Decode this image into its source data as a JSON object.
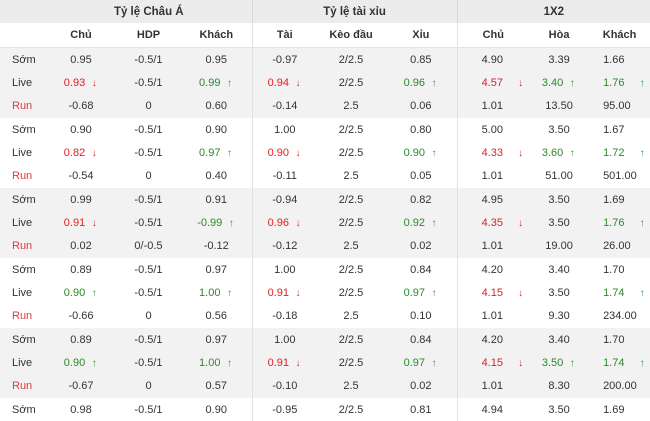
{
  "groups": [
    "Tỷ lệ Châu Á",
    "Tỷ lệ tài xỉu",
    "1X2"
  ],
  "columns": [
    "Chủ",
    "HDP",
    "Khách",
    "Tài",
    "Kèo đầu",
    "Xỉu",
    "Chủ",
    "Hòa",
    "Khách"
  ],
  "colors": {
    "down": "#e02020",
    "up": "#2aa02a",
    "run_label": "#e03a3a",
    "group_bg": "#f2f2f2"
  },
  "rows": [
    {
      "label": "Sớm",
      "type": "som",
      "vals": [
        "0.95",
        "-0.5/1",
        "0.95",
        "-0.97",
        "2/2.5",
        "0.85",
        "4.90",
        "3.39",
        "1.66"
      ],
      "dirs": [
        "",
        "",
        "",
        "",
        "",
        "",
        "",
        "",
        ""
      ]
    },
    {
      "label": "Live",
      "type": "live",
      "vals": [
        "0.93",
        "-0.5/1",
        "0.99",
        "0.94",
        "2/2.5",
        "0.96",
        "4.57",
        "3.40",
        "1.76"
      ],
      "dirs": [
        "down",
        "",
        "up",
        "down",
        "",
        "up",
        "down",
        "up",
        "up"
      ]
    },
    {
      "label": "Run",
      "type": "run",
      "vals": [
        "-0.68",
        "0",
        "0.60",
        "-0.14",
        "2.5",
        "0.06",
        "1.01",
        "13.50",
        "95.00"
      ],
      "dirs": [
        "",
        "",
        "",
        "",
        "",
        "",
        "",
        "",
        ""
      ]
    },
    {
      "label": "Sớm",
      "type": "som",
      "vals": [
        "0.90",
        "-0.5/1",
        "0.90",
        "1.00",
        "2/2.5",
        "0.80",
        "5.00",
        "3.50",
        "1.67"
      ],
      "dirs": [
        "",
        "",
        "",
        "",
        "",
        "",
        "",
        "",
        ""
      ]
    },
    {
      "label": "Live",
      "type": "live",
      "vals": [
        "0.82",
        "-0.5/1",
        "0.97",
        "0.90",
        "2/2.5",
        "0.90",
        "4.33",
        "3.60",
        "1.72"
      ],
      "dirs": [
        "down",
        "",
        "up",
        "down",
        "",
        "up",
        "down",
        "up",
        "up"
      ]
    },
    {
      "label": "Run",
      "type": "run",
      "vals": [
        "-0.54",
        "0",
        "0.40",
        "-0.11",
        "2.5",
        "0.05",
        "1.01",
        "51.00",
        "501.00"
      ],
      "dirs": [
        "",
        "",
        "",
        "",
        "",
        "",
        "",
        "",
        ""
      ]
    },
    {
      "label": "Sớm",
      "type": "som",
      "vals": [
        "0.99",
        "-0.5/1",
        "0.91",
        "-0.94",
        "2/2.5",
        "0.82",
        "4.95",
        "3.50",
        "1.69"
      ],
      "dirs": [
        "",
        "",
        "",
        "",
        "",
        "",
        "",
        "",
        ""
      ]
    },
    {
      "label": "Live",
      "type": "live",
      "vals": [
        "0.91",
        "-0.5/1",
        "-0.99",
        "0.96",
        "2/2.5",
        "0.92",
        "4.35",
        "3.50",
        "1.76"
      ],
      "dirs": [
        "down",
        "",
        "up",
        "down",
        "",
        "up",
        "down",
        "",
        "up"
      ]
    },
    {
      "label": "Run",
      "type": "run",
      "vals": [
        "0.02",
        "0/-0.5",
        "-0.12",
        "-0.12",
        "2.5",
        "0.02",
        "1.01",
        "19.00",
        "26.00"
      ],
      "dirs": [
        "",
        "",
        "",
        "",
        "",
        "",
        "",
        "",
        ""
      ]
    },
    {
      "label": "Sớm",
      "type": "som",
      "vals": [
        "0.89",
        "-0.5/1",
        "0.97",
        "1.00",
        "2/2.5",
        "0.84",
        "4.20",
        "3.40",
        "1.70"
      ],
      "dirs": [
        "",
        "",
        "",
        "",
        "",
        "",
        "",
        "",
        ""
      ]
    },
    {
      "label": "Live",
      "type": "live",
      "vals": [
        "0.90",
        "-0.5/1",
        "1.00",
        "0.91",
        "2/2.5",
        "0.97",
        "4.15",
        "3.50",
        "1.74"
      ],
      "dirs": [
        "up",
        "",
        "up",
        "down",
        "",
        "up",
        "down",
        "",
        "up"
      ]
    },
    {
      "label": "Run",
      "type": "run",
      "vals": [
        "-0.66",
        "0",
        "0.56",
        "-0.18",
        "2.5",
        "0.10",
        "1.01",
        "9.30",
        "234.00"
      ],
      "dirs": [
        "",
        "",
        "",
        "",
        "",
        "",
        "",
        "",
        ""
      ]
    },
    {
      "label": "Sớm",
      "type": "som",
      "vals": [
        "0.89",
        "-0.5/1",
        "0.97",
        "1.00",
        "2/2.5",
        "0.84",
        "4.20",
        "3.40",
        "1.70"
      ],
      "dirs": [
        "",
        "",
        "",
        "",
        "",
        "",
        "",
        "",
        ""
      ]
    },
    {
      "label": "Live",
      "type": "live",
      "vals": [
        "0.90",
        "-0.5/1",
        "1.00",
        "0.91",
        "2/2.5",
        "0.97",
        "4.15",
        "3.50",
        "1.74"
      ],
      "dirs": [
        "up",
        "",
        "up",
        "down",
        "",
        "up",
        "down",
        "up",
        "up"
      ]
    },
    {
      "label": "Run",
      "type": "run",
      "vals": [
        "-0.67",
        "0",
        "0.57",
        "-0.10",
        "2.5",
        "0.02",
        "1.01",
        "8.30",
        "200.00"
      ],
      "dirs": [
        "",
        "",
        "",
        "",
        "",
        "",
        "",
        "",
        ""
      ]
    },
    {
      "label": "Sớm",
      "type": "som",
      "vals": [
        "0.98",
        "-0.5/1",
        "0.90",
        "-0.95",
        "2/2.5",
        "0.81",
        "4.94",
        "3.50",
        "1.69"
      ],
      "dirs": [
        "",
        "",
        "",
        "",
        "",
        "",
        "",
        "",
        ""
      ]
    }
  ]
}
